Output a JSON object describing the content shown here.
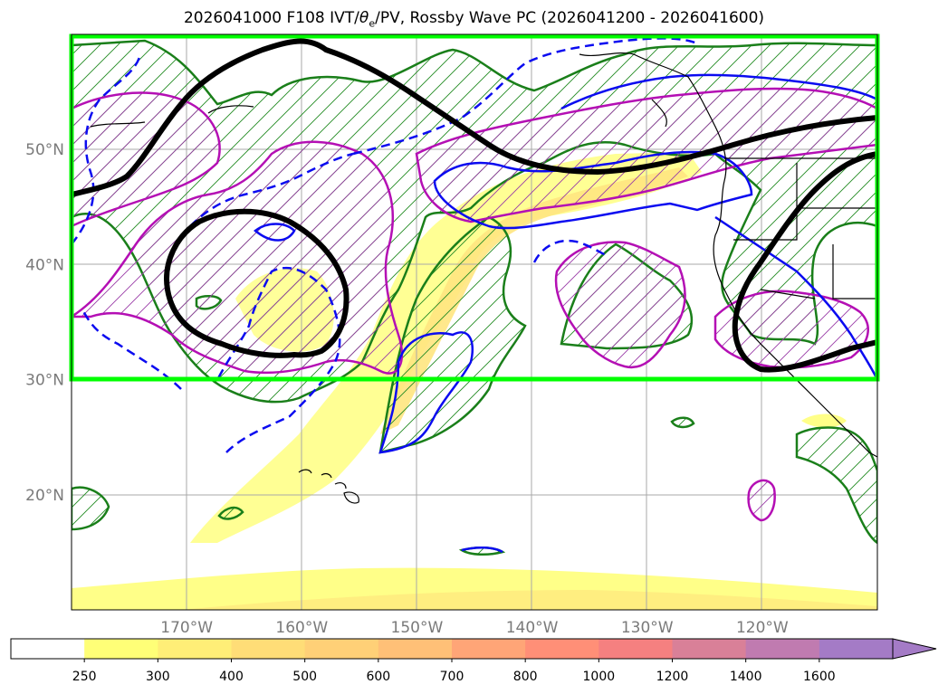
{
  "title": {
    "prefix": "2026041000 F108 IVT/",
    "theta": "θ",
    "theta_sub": "e",
    "suffix": "/PV, Rossby Wave PC (2026041200 - 2026041600)"
  },
  "axes": {
    "lat_labels": [
      "50°N",
      "40°N",
      "30°N",
      "20°N"
    ],
    "lon_labels": [
      "170°W",
      "160°W",
      "150°W",
      "140°W",
      "130°W",
      "120°W"
    ],
    "lat_values": [
      50,
      40,
      30,
      20
    ],
    "lon_values": [
      -170,
      -160,
      -150,
      -140,
      -130,
      -120
    ],
    "lon_range": [
      -180,
      -110
    ],
    "lat_range": [
      10,
      60
    ]
  },
  "box": {
    "color": "#00ff00",
    "lat_range": [
      30,
      60
    ]
  },
  "colorbar": {
    "levels": [
      "250",
      "300",
      "400",
      "500",
      "600",
      "700",
      "800",
      "1000",
      "1200",
      "1400",
      "1600"
    ],
    "colors": [
      "#ffff77",
      "#ffee77",
      "#ffdd77",
      "#ffd077",
      "#ffc077",
      "#ffa577",
      "#ff8f77",
      "#f58080",
      "#d98098",
      "#c07bb0",
      "#a47bc6"
    ]
  }
}
